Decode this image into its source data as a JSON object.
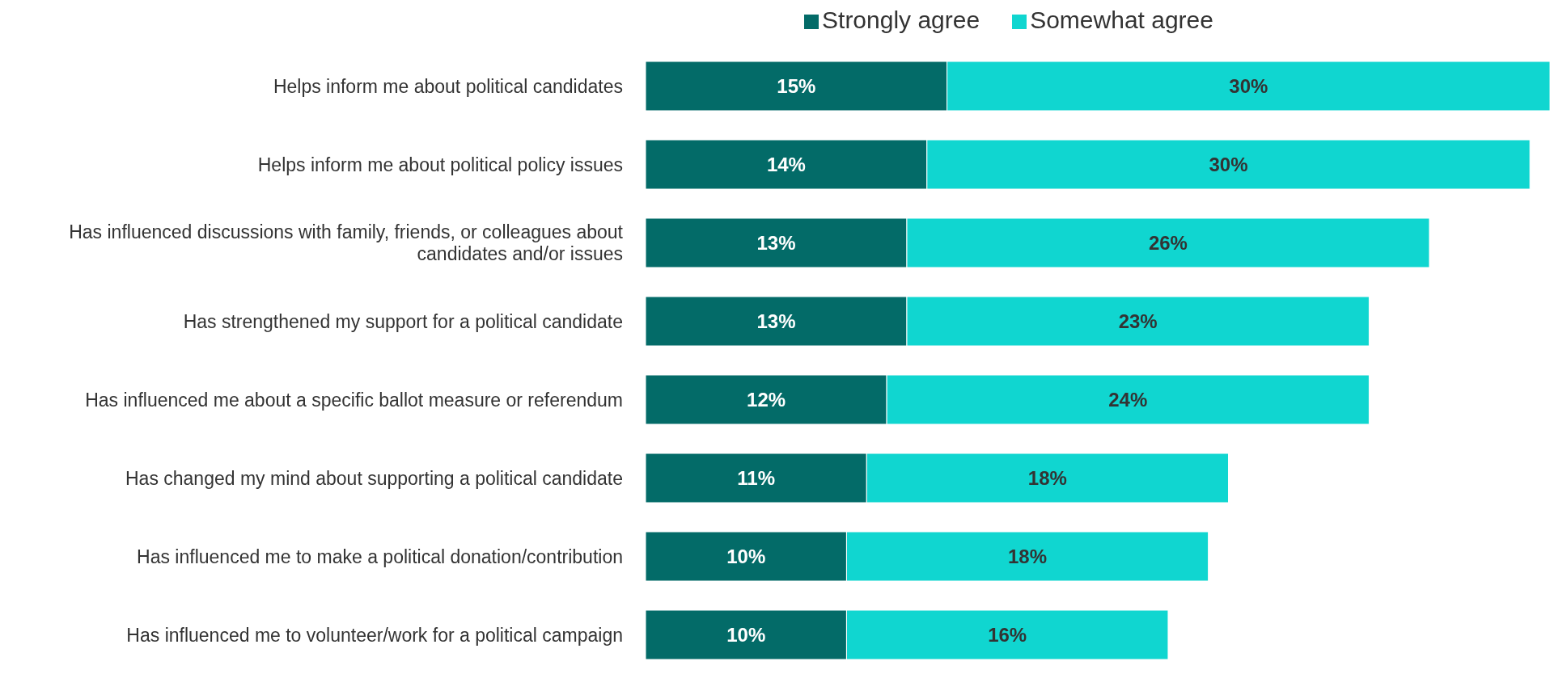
{
  "chart_data": {
    "type": "bar",
    "orientation": "horizontal",
    "stacked": true,
    "legend": "top",
    "categories": [
      "Helps inform me about political candidates",
      "Helps inform me about political policy issues",
      "Has influenced discussions with family, friends, or colleagues about candidates and/or issues",
      "Has strengthened my support for a political candidate",
      "Has influenced me about a specific ballot measure or referendum",
      "Has changed my mind about supporting a political candidate",
      "Has influenced me to make a political donation/contribution",
      "Has influenced me to volunteer/work for a political campaign"
    ],
    "series": [
      {
        "name": "Strongly agree",
        "color": "#036b68",
        "values": [
          15,
          14,
          13,
          13,
          12,
          11,
          10,
          10
        ],
        "value_labels": [
          "15%",
          "14%",
          "13%",
          "13%",
          "12%",
          "11%",
          "10%",
          "10%"
        ]
      },
      {
        "name": "Somewhat agree",
        "color": "#10d6d0",
        "values": [
          30,
          30,
          26,
          23,
          24,
          18,
          18,
          16
        ],
        "value_labels": [
          "30%",
          "30%",
          "26%",
          "23%",
          "24%",
          "18%",
          "18%",
          "16%"
        ]
      }
    ]
  }
}
